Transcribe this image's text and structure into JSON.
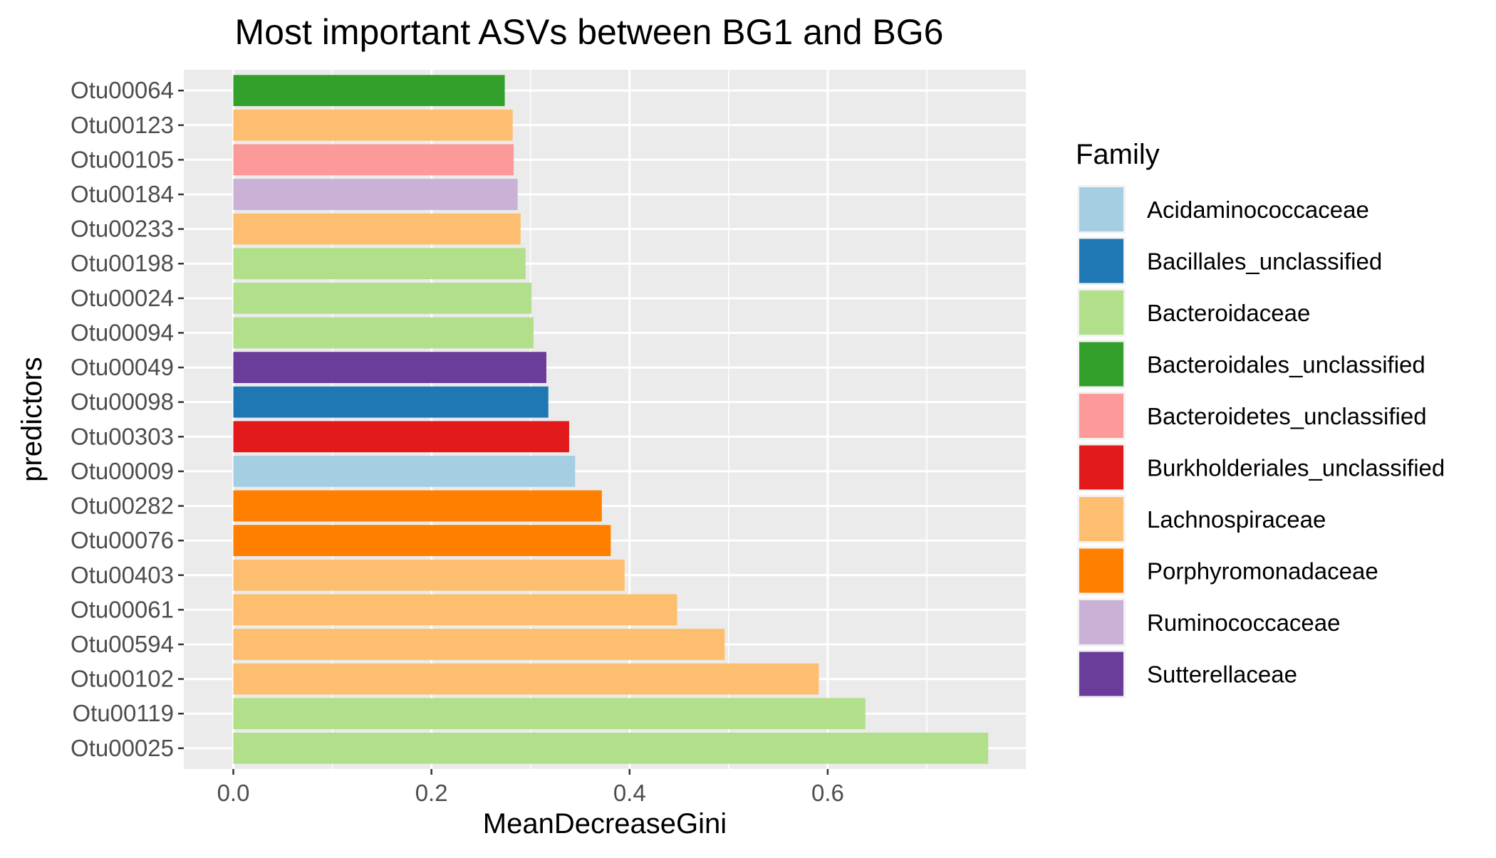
{
  "chart_data": {
    "type": "bar",
    "orientation": "horizontal",
    "title": "Most important ASVs between BG1 and BG6",
    "xlabel": "MeanDecreaseGini",
    "ylabel": "predictors",
    "xlim": [
      -0.05,
      0.8
    ],
    "x_ticks": [
      0.0,
      0.2,
      0.4,
      0.6
    ],
    "x_tick_labels": [
      "0.0",
      "0.2",
      "0.4",
      "0.6"
    ],
    "grid": true,
    "legend": {
      "title": "Family",
      "position": "right",
      "entries": [
        {
          "name": "Acidaminococcaceae",
          "color": "#A6CEE3"
        },
        {
          "name": "Bacillales_unclassified",
          "color": "#1F78B4"
        },
        {
          "name": "Bacteroidaceae",
          "color": "#B2DF8A"
        },
        {
          "name": "Bacteroidales_unclassified",
          "color": "#33A02C"
        },
        {
          "name": "Bacteroidetes_unclassified",
          "color": "#FB9A99"
        },
        {
          "name": "Burkholderiales_unclassified",
          "color": "#E31A1C"
        },
        {
          "name": "Lachnospiraceae",
          "color": "#FDBF6F"
        },
        {
          "name": "Porphyromonadaceae",
          "color": "#FF7F00"
        },
        {
          "name": "Ruminococcaceae",
          "color": "#CAB2D6"
        },
        {
          "name": "Sutterellaceae",
          "color": "#6A3D9A"
        }
      ]
    },
    "bars": [
      {
        "label": "Otu00064",
        "value": 0.274,
        "family": "Bacteroidales_unclassified"
      },
      {
        "label": "Otu00123",
        "value": 0.282,
        "family": "Lachnospiraceae"
      },
      {
        "label": "Otu00105",
        "value": 0.283,
        "family": "Bacteroidetes_unclassified"
      },
      {
        "label": "Otu00184",
        "value": 0.287,
        "family": "Ruminococcaceae"
      },
      {
        "label": "Otu00233",
        "value": 0.29,
        "family": "Lachnospiraceae"
      },
      {
        "label": "Otu00198",
        "value": 0.295,
        "family": "Bacteroidaceae"
      },
      {
        "label": "Otu00024",
        "value": 0.301,
        "family": "Bacteroidaceae"
      },
      {
        "label": "Otu00094",
        "value": 0.303,
        "family": "Bacteroidaceae"
      },
      {
        "label": "Otu00049",
        "value": 0.316,
        "family": "Sutterellaceae"
      },
      {
        "label": "Otu00098",
        "value": 0.318,
        "family": "Bacillales_unclassified"
      },
      {
        "label": "Otu00303",
        "value": 0.339,
        "family": "Burkholderiales_unclassified"
      },
      {
        "label": "Otu00009",
        "value": 0.345,
        "family": "Acidaminococcaceae"
      },
      {
        "label": "Otu00282",
        "value": 0.372,
        "family": "Porphyromonadaceae"
      },
      {
        "label": "Otu00076",
        "value": 0.381,
        "family": "Porphyromonadaceae"
      },
      {
        "label": "Otu00403",
        "value": 0.395,
        "family": "Lachnospiraceae"
      },
      {
        "label": "Otu00061",
        "value": 0.448,
        "family": "Lachnospiraceae"
      },
      {
        "label": "Otu00594",
        "value": 0.496,
        "family": "Lachnospiraceae"
      },
      {
        "label": "Otu00102",
        "value": 0.591,
        "family": "Lachnospiraceae"
      },
      {
        "label": "Otu00119",
        "value": 0.638,
        "family": "Bacteroidaceae"
      },
      {
        "label": "Otu00025",
        "value": 0.762,
        "family": "Bacteroidaceae"
      }
    ]
  }
}
